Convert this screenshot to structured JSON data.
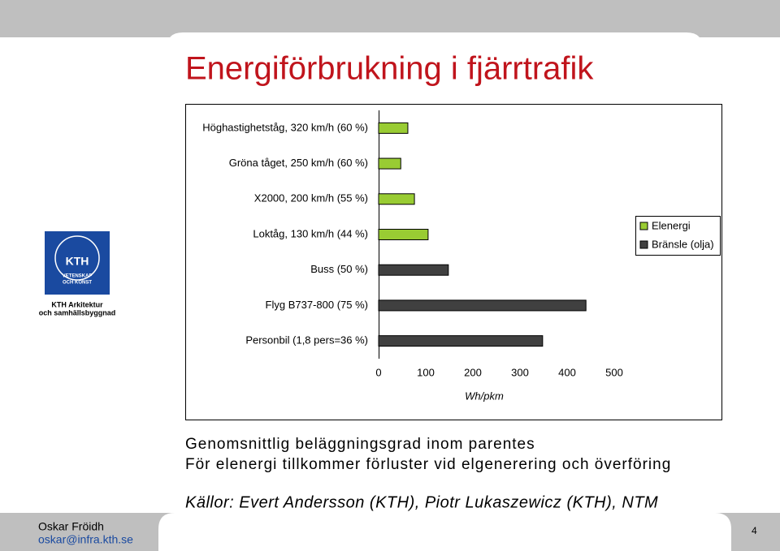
{
  "slide": {
    "title": "Energiförbrukning i fjärrtrafik",
    "notes": [
      "Genomsnittlig beläggningsgrad inom parentes",
      "För elenergi tillkommer förluster vid elgenerering och överföring"
    ],
    "source": "Källor: Evert Andersson (KTH), Piotr Lukaszewicz (KTH), NTM",
    "logo": {
      "mark": "KTH",
      "motto_1": "VETENSKAP",
      "motto_2": "OCH KONST",
      "dept_1": "KTH Arkitektur",
      "dept_2": "och samhällsbyggnad"
    },
    "footer": {
      "author": "Oskar Fröidh",
      "email": "oskar@infra.kth.se",
      "page": "4"
    }
  },
  "chart_data": {
    "type": "hbar",
    "categories": [
      "Höghastighetståg, 320 km/h (60 %)",
      "Gröna tåget, 250 km/h (60 %)",
      "X2000, 200 km/h (55 %)",
      "Loktåg, 130 km/h (44 %)",
      "Buss (50 %)",
      "Flyg B737-800 (75 %)",
      "Personbil (1,8 pers=36 %)"
    ],
    "series": [
      {
        "name": "Elenergi",
        "color": "#99cc33",
        "values": [
          62,
          47,
          76,
          105,
          null,
          null,
          null
        ]
      },
      {
        "name": "Bränsle (olja)",
        "color": "#404040",
        "values": [
          null,
          null,
          null,
          null,
          148,
          440,
          348
        ]
      }
    ],
    "xlim": [
      0,
      500
    ],
    "xticks": [
      0,
      100,
      200,
      300,
      400,
      500
    ],
    "x_label": "Wh/pkm",
    "legend": "right",
    "grid": false
  }
}
